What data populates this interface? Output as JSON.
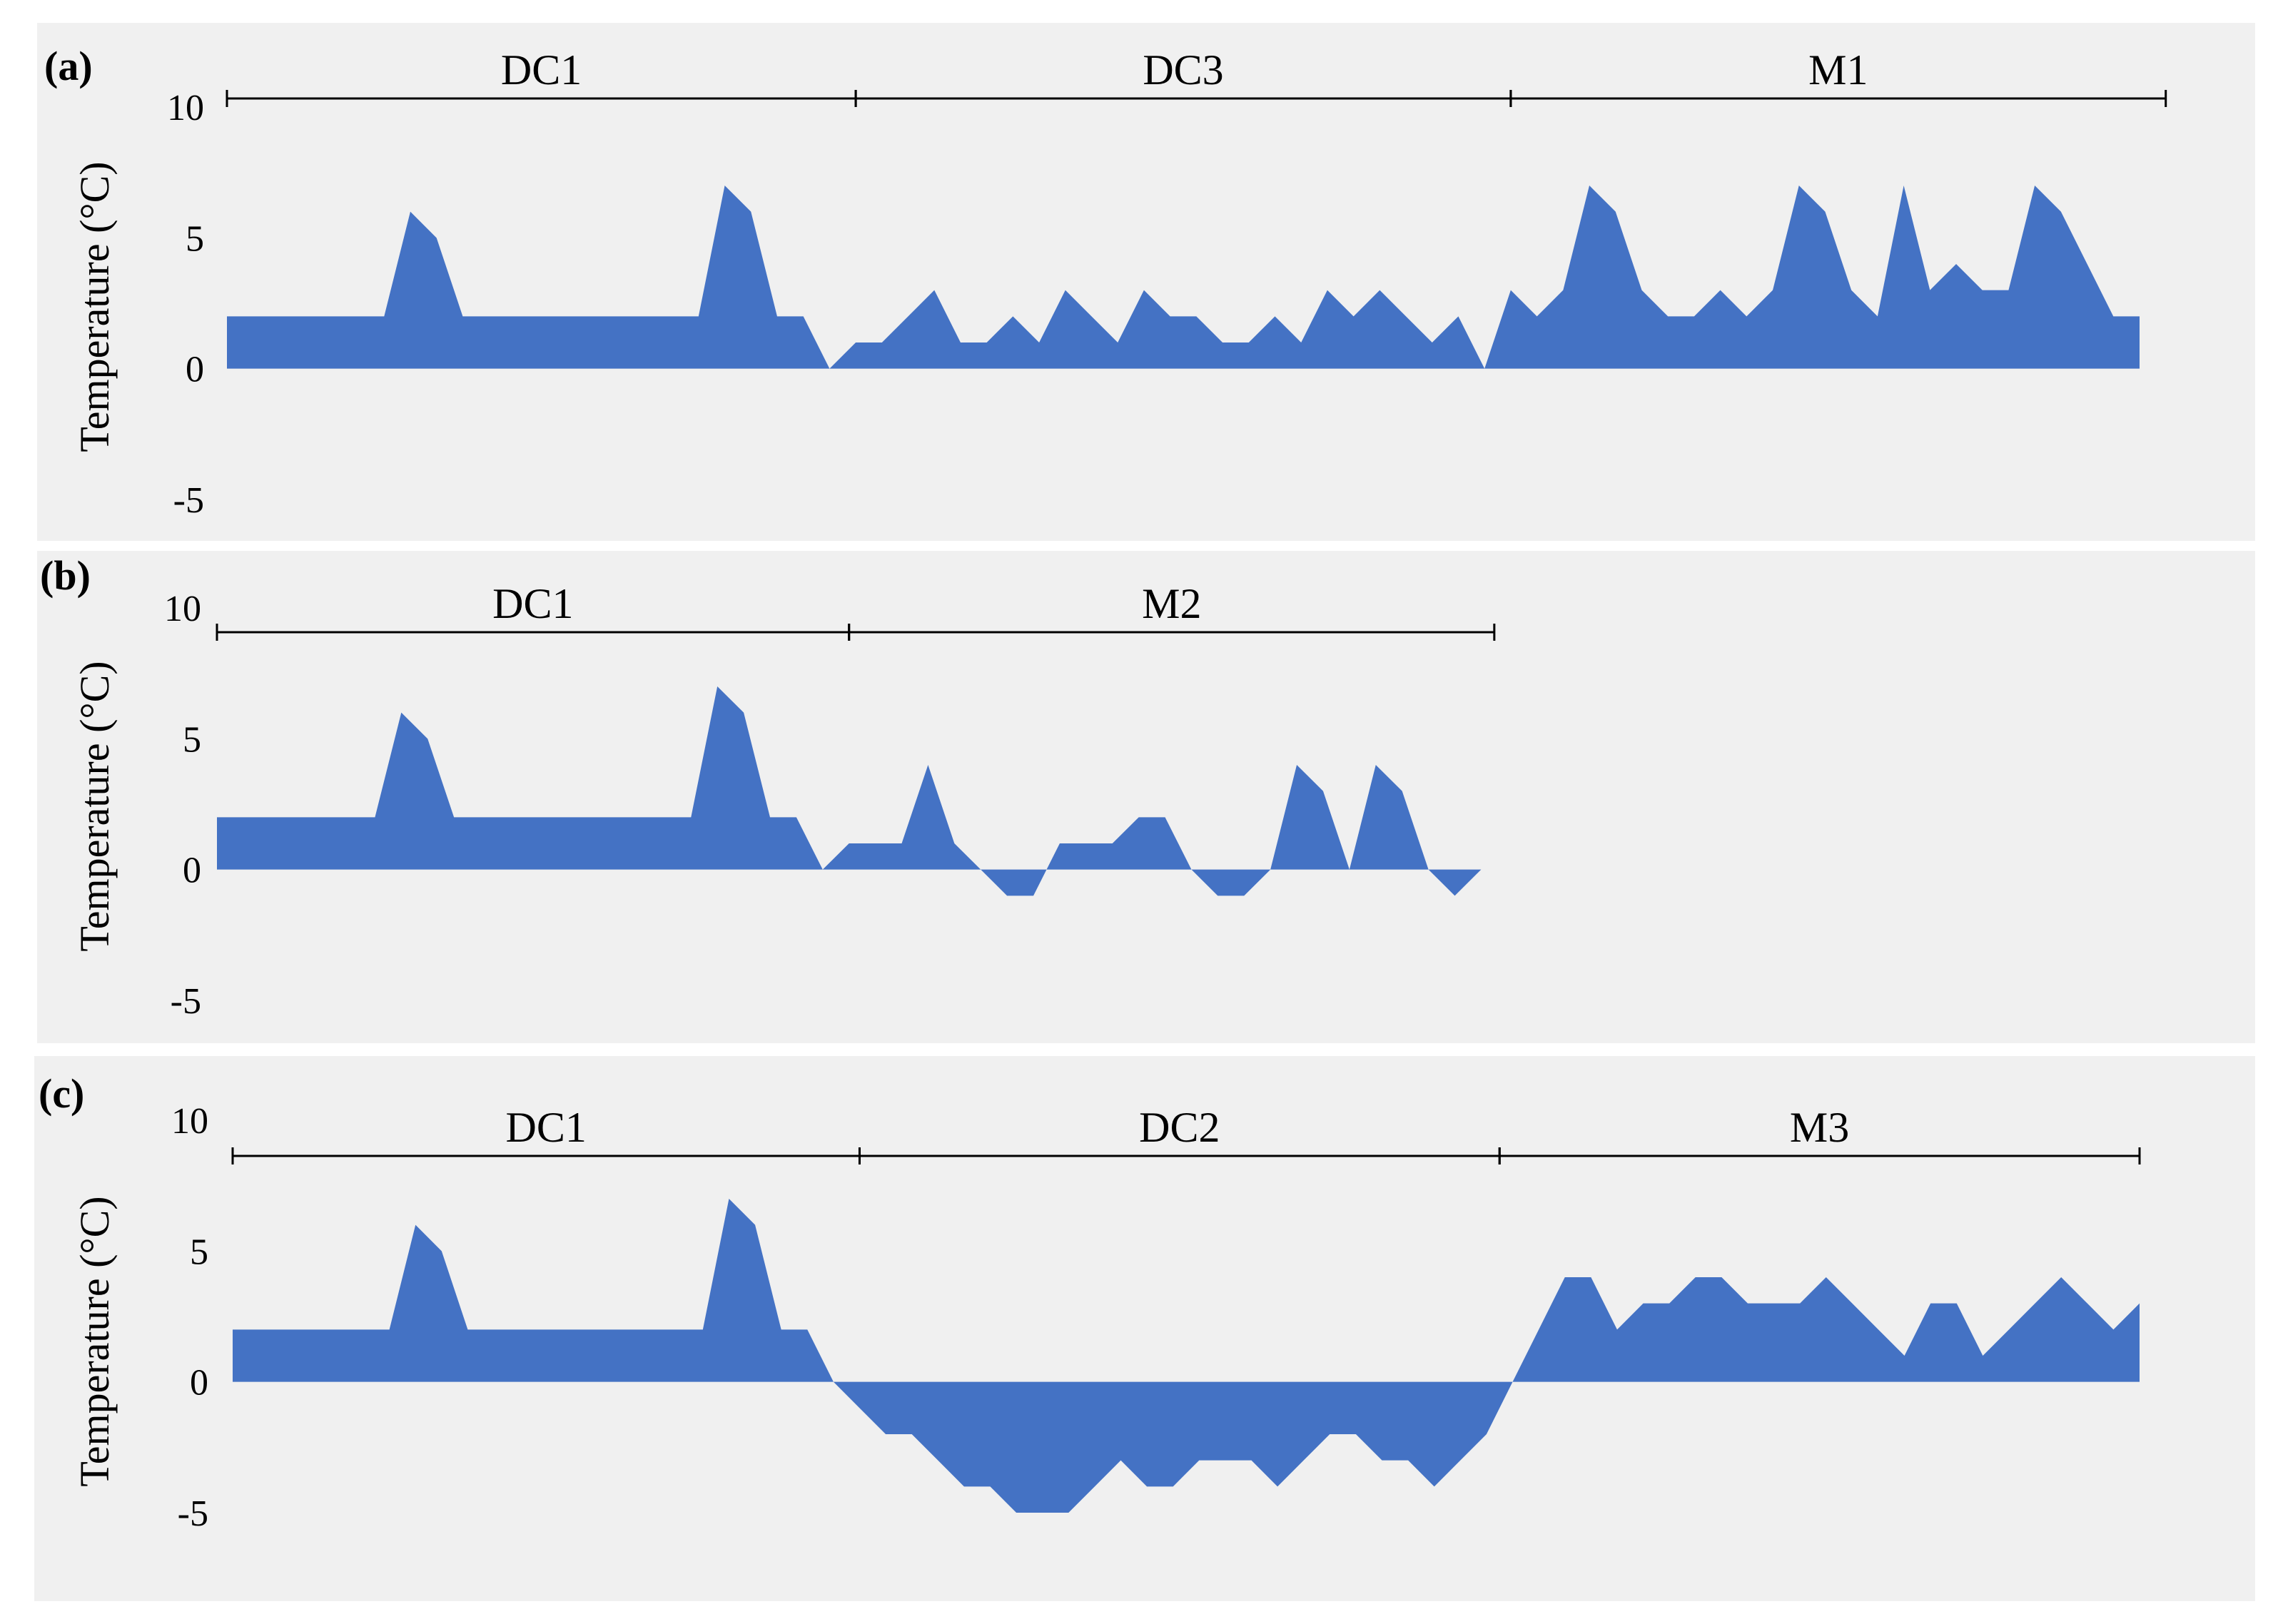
{
  "chart_data": [
    {
      "type": "area",
      "panel_label": "(a)",
      "ylabel": "Temperature (°C)",
      "ylim": [
        -5,
        10
      ],
      "yticks": [
        10,
        5,
        0,
        -5
      ],
      "segments": [
        {
          "label": "DC1",
          "start": 0,
          "end": 24
        },
        {
          "label": "DC3",
          "start": 24,
          "end": 49
        },
        {
          "label": "M1",
          "start": 49,
          "end": 74
        }
      ],
      "series": [
        {
          "x": [
            0,
            1,
            2,
            3,
            4,
            5,
            6,
            7,
            8,
            9,
            10,
            11,
            12,
            13,
            14,
            15,
            16,
            17,
            18,
            19,
            20,
            21,
            22,
            23,
            24,
            25,
            26,
            27,
            28,
            29,
            30,
            31,
            32,
            33,
            34,
            35,
            36,
            37,
            38,
            39,
            40,
            41,
            42,
            43,
            44,
            45,
            46,
            47,
            48,
            49,
            50,
            51,
            52,
            53,
            54,
            55,
            56,
            57,
            58,
            59,
            60,
            61,
            62,
            63,
            64,
            65,
            66,
            67,
            68,
            69,
            70,
            71,
            72,
            73
          ],
          "values": [
            2,
            2,
            2,
            2,
            2,
            2,
            2,
            6,
            5,
            2,
            2,
            2,
            2,
            2,
            2,
            2,
            2,
            2,
            2,
            7,
            6,
            2,
            2,
            0,
            1,
            1,
            2,
            3,
            1,
            1,
            2,
            1,
            3,
            2,
            1,
            3,
            2,
            2,
            1,
            1,
            2,
            1,
            3,
            2,
            3,
            2,
            1,
            2,
            0,
            3,
            2,
            3,
            7,
            6,
            3,
            2,
            2,
            3,
            2,
            3,
            7,
            6,
            3,
            2,
            7,
            3,
            4,
            3,
            3,
            7,
            6,
            4,
            2,
            2
          ]
        }
      ]
    },
    {
      "type": "area",
      "panel_label": "(b)",
      "ylabel": "Temperature (°C)",
      "ylim": [
        -5,
        10
      ],
      "yticks": [
        10,
        5,
        0,
        -5
      ],
      "segments": [
        {
          "label": "DC1",
          "start": 0,
          "end": 24
        },
        {
          "label": "M2",
          "start": 24,
          "end": 48.5
        }
      ],
      "series": [
        {
          "x": [
            0,
            1,
            2,
            3,
            4,
            5,
            6,
            7,
            8,
            9,
            10,
            11,
            12,
            13,
            14,
            15,
            16,
            17,
            18,
            19,
            20,
            21,
            22,
            23,
            24,
            25,
            26,
            27,
            28,
            29,
            30,
            31,
            32,
            33,
            34,
            35,
            36,
            37,
            38,
            39,
            40,
            41,
            42,
            43,
            44,
            45,
            46,
            47,
            48,
            49
          ],
          "values": [
            2,
            2,
            2,
            2,
            2,
            2,
            2,
            6,
            5,
            2,
            2,
            2,
            2,
            2,
            2,
            2,
            2,
            2,
            2,
            7,
            6,
            2,
            2,
            0,
            1,
            1,
            1,
            4,
            1,
            0,
            -1,
            -1,
            1,
            1,
            1,
            2,
            2,
            0,
            -1,
            -1,
            0,
            4,
            3,
            0,
            4,
            3,
            0,
            -1,
            0,
            0
          ]
        }
      ]
    },
    {
      "type": "area",
      "panel_label": "(c)",
      "ylabel": "Temperature (°C)",
      "ylim": [
        -5,
        10
      ],
      "yticks": [
        10,
        5,
        0,
        -5
      ],
      "segments": [
        {
          "label": "DC1",
          "start": 0,
          "end": 24
        },
        {
          "label": "DC2",
          "start": 24,
          "end": 48.5
        },
        {
          "label": "M3",
          "start": 48.5,
          "end": 73
        }
      ],
      "series": [
        {
          "x": [
            0,
            1,
            2,
            3,
            4,
            5,
            6,
            7,
            8,
            9,
            10,
            11,
            12,
            13,
            14,
            15,
            16,
            17,
            18,
            19,
            20,
            21,
            22,
            23,
            24,
            25,
            26,
            27,
            28,
            29,
            30,
            31,
            32,
            33,
            34,
            35,
            36,
            37,
            38,
            39,
            40,
            41,
            42,
            43,
            44,
            45,
            46,
            47,
            48,
            49,
            50,
            51,
            52,
            53,
            54,
            55,
            56,
            57,
            58,
            59,
            60,
            61,
            62,
            63,
            64,
            65,
            66,
            67,
            68,
            69,
            70,
            71,
            72,
            73
          ],
          "values": [
            2,
            2,
            2,
            2,
            2,
            2,
            2,
            6,
            5,
            2,
            2,
            2,
            2,
            2,
            2,
            2,
            2,
            2,
            2,
            7,
            6,
            2,
            2,
            0,
            -1,
            -2,
            -2,
            -3,
            -4,
            -4,
            -5,
            -5,
            -5,
            -4,
            -3,
            -4,
            -4,
            -3,
            -3,
            -3,
            -4,
            -3,
            -2,
            -2,
            -3,
            -3,
            -4,
            -3,
            -2,
            0,
            2,
            4,
            4,
            2,
            3,
            3,
            4,
            4,
            3,
            3,
            3,
            4,
            3,
            2,
            1,
            3,
            3,
            1,
            2,
            3,
            4,
            3,
            2,
            3
          ]
        }
      ]
    }
  ]
}
